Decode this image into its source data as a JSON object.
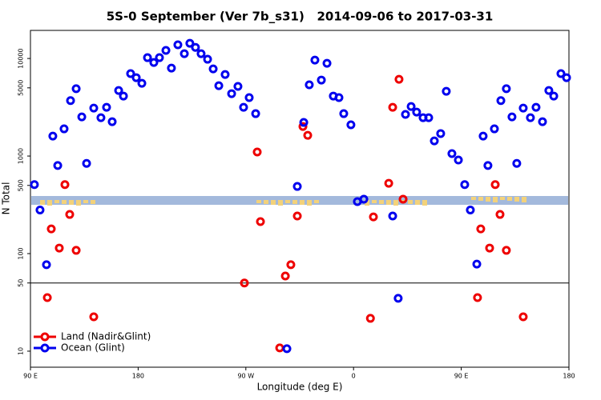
{
  "chart_data": {
    "type": "scatter",
    "title": "5S-0 September (Ver 7b_s31)   2014-09-06 to 2017-03-31",
    "x_label": "Longitude (deg E)",
    "y_label": "N Total",
    "xlim": [
      90,
      540
    ],
    "xticks": [
      {
        "value": 90,
        "label": "90 E"
      },
      {
        "value": 180,
        "label": "180"
      },
      {
        "value": 270,
        "label": "90 W"
      },
      {
        "value": 360,
        "label": "0"
      },
      {
        "value": 450,
        "label": "90 E"
      },
      {
        "value": 540,
        "label": "180"
      }
    ],
    "ylim": [
      6.85,
      19400
    ],
    "y_scale": "log",
    "yticks": [
      10,
      50,
      100,
      500,
      1000,
      5000,
      10000
    ],
    "reference_line": 50,
    "legend": "bottom-left",
    "series": [
      {
        "name": "Land (Nadir&Glint)",
        "color": "#ee0000",
        "x": [
          104.1,
          107.4,
          114.1,
          118.8,
          122.8,
          128.2,
          142.9,
          268.8,
          279.5,
          282.2,
          298.3,
          303.0,
          307.6,
          313.0,
          317.7,
          321.7,
          374.1,
          376.6,
          389.4,
          392.7,
          398.0,
          401.4,
          463.6,
          466.3,
          473.7,
          478.4,
          482.4,
          487.7,
          501.8
        ],
        "values": [
          35.4,
          179,
          114,
          510,
          252,
          108,
          22.5,
          50,
          1100,
          213,
          10.8,
          58.9,
          77,
          243,
          2010,
          1630,
          21.7,
          238,
          526,
          3160,
          6120,
          361,
          35.4,
          179,
          114,
          510,
          252,
          108,
          22.5
        ]
      },
      {
        "name": "Ocean (Glint)",
        "color": "#0000ee",
        "x": [
          93.3,
          98.0,
          103.4,
          108.7,
          112.8,
          118.1,
          123.5,
          128.2,
          132.9,
          136.9,
          142.9,
          148.9,
          153.6,
          158.3,
          163.7,
          167.7,
          173.7,
          178.4,
          183.1,
          187.8,
          193.1,
          197.8,
          203.2,
          207.8,
          213.2,
          218.6,
          223.2,
          227.9,
          232.6,
          238.0,
          242.7,
          247.4,
          252.7,
          258.1,
          263.4,
          268.1,
          272.8,
          278.2,
          304.3,
          313.0,
          318.4,
          323.0,
          327.7,
          333.1,
          337.8,
          343.1,
          347.8,
          351.8,
          357.8,
          363.2,
          368.6,
          392.7,
          397.3,
          403.4,
          408.1,
          412.7,
          418.1,
          422.8,
          427.5,
          432.8,
          437.5,
          442.2,
          447.6,
          452.9,
          457.6,
          463.0,
          468.3,
          472.3,
          477.7,
          483.1,
          487.7,
          492.4,
          496.4,
          501.8,
          507.8,
          512.5,
          517.9,
          523.2,
          527.3,
          533.3,
          538.0
        ],
        "values": [
          510,
          280,
          77,
          1600,
          800,
          1900,
          3700,
          4900,
          2520,
          840,
          3100,
          2470,
          3160,
          2250,
          4700,
          4120,
          7000,
          6360,
          5570,
          10200,
          9100,
          10200,
          12100,
          7970,
          13800,
          11200,
          14300,
          13000,
          11200,
          9820,
          7820,
          5260,
          6850,
          4360,
          5170,
          3160,
          3970,
          2720,
          10.6,
          488,
          2210,
          5370,
          9630,
          6010,
          8930,
          4120,
          3970,
          2720,
          2090,
          341,
          361,
          243,
          34.8,
          2670,
          3220,
          2820,
          2470,
          2470,
          1430,
          1700,
          4610,
          1060,
          910,
          510,
          280,
          78,
          1600,
          800,
          1900,
          3700,
          4900,
          2520,
          840,
          3100,
          2470,
          3160,
          2250,
          4700,
          4120,
          7000,
          6360
        ]
      }
    ]
  }
}
